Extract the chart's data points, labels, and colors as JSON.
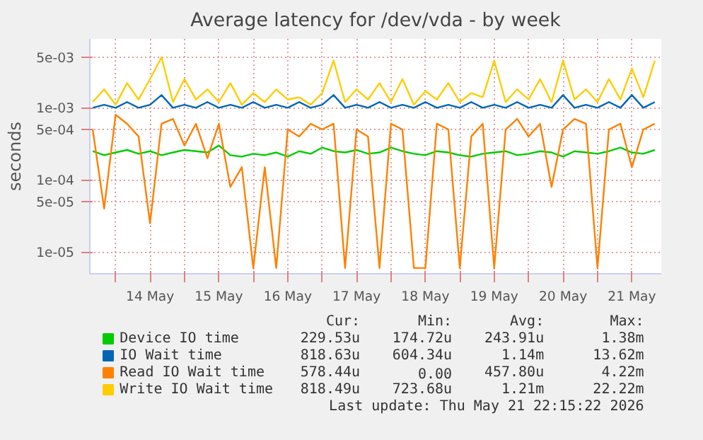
{
  "chart_data": {
    "type": "line",
    "title": "Average latency for /dev/vda - by week",
    "ylabel": "seconds",
    "x": [
      "2026-05-13T16:00",
      "2026-05-13T20:00",
      "2026-05-14T00:00",
      "2026-05-14T04:00",
      "2026-05-14T08:00",
      "2026-05-14T12:00",
      "2026-05-14T16:00",
      "2026-05-14T20:00",
      "2026-05-15T00:00",
      "2026-05-15T04:00",
      "2026-05-15T08:00",
      "2026-05-15T12:00",
      "2026-05-15T16:00",
      "2026-05-15T20:00",
      "2026-05-16T00:00",
      "2026-05-16T04:00",
      "2026-05-16T08:00",
      "2026-05-16T12:00",
      "2026-05-16T16:00",
      "2026-05-16T20:00",
      "2026-05-17T00:00",
      "2026-05-17T04:00",
      "2026-05-17T08:00",
      "2026-05-17T12:00",
      "2026-05-17T16:00",
      "2026-05-17T20:00",
      "2026-05-18T00:00",
      "2026-05-18T04:00",
      "2026-05-18T08:00",
      "2026-05-18T12:00",
      "2026-05-18T16:00",
      "2026-05-18T20:00",
      "2026-05-19T00:00",
      "2026-05-19T04:00",
      "2026-05-19T08:00",
      "2026-05-19T12:00",
      "2026-05-19T16:00",
      "2026-05-19T20:00",
      "2026-05-20T00:00",
      "2026-05-20T04:00",
      "2026-05-20T08:00",
      "2026-05-20T12:00",
      "2026-05-20T16:00",
      "2026-05-20T20:00",
      "2026-05-21T00:00",
      "2026-05-21T04:00",
      "2026-05-21T08:00",
      "2026-05-21T12:00",
      "2026-05-21T16:00",
      "2026-05-21T20:00"
    ],
    "series": [
      {
        "name": "Device IO time",
        "color": "#00cc00",
        "values": [
          0.00025,
          0.00022,
          0.00024,
          0.00026,
          0.00023,
          0.00025,
          0.00022,
          0.00024,
          0.00026,
          0.00025,
          0.00024,
          0.0003,
          0.00022,
          0.00021,
          0.00023,
          0.00022,
          0.00024,
          0.00021,
          0.00025,
          0.00023,
          0.00028,
          0.00025,
          0.00024,
          0.00026,
          0.00023,
          0.00024,
          0.00028,
          0.00025,
          0.00023,
          0.00022,
          0.00025,
          0.00024,
          0.00022,
          0.00021,
          0.00023,
          0.00024,
          0.00025,
          0.00022,
          0.00023,
          0.00025,
          0.00024,
          0.00021,
          0.00025,
          0.00024,
          0.00023,
          0.00025,
          0.00028,
          0.00024,
          0.00023,
          0.00026
        ]
      },
      {
        "name": "IO Wait time",
        "color": "#0066b3",
        "values": [
          0.001,
          0.0011,
          0.001,
          0.0012,
          0.001,
          0.0011,
          0.0015,
          0.001,
          0.0011,
          0.001,
          0.0012,
          0.001,
          0.0011,
          0.001,
          0.0012,
          0.001,
          0.0011,
          0.001,
          0.0012,
          0.001,
          0.0011,
          0.0015,
          0.001,
          0.0011,
          0.001,
          0.0012,
          0.001,
          0.0011,
          0.001,
          0.0012,
          0.001,
          0.0011,
          0.001,
          0.0012,
          0.001,
          0.0011,
          0.001,
          0.0012,
          0.001,
          0.0011,
          0.001,
          0.0015,
          0.001,
          0.0011,
          0.001,
          0.0012,
          0.001,
          0.0015,
          0.001,
          0.0012
        ]
      },
      {
        "name": "Read IO Wait time",
        "color": "#ff8000",
        "values": [
          0.0005,
          4e-05,
          0.0008,
          0.0006,
          0.0004,
          2.5e-05,
          0.0006,
          0.0007,
          0.0003,
          0.0006,
          0.0002,
          0.0006,
          8e-05,
          0.00015,
          6e-06,
          0.00015,
          6e-06,
          0.0005,
          0.0004,
          0.0006,
          0.0005,
          0.0006,
          6e-06,
          0.0005,
          0.0004,
          6e-06,
          0.0006,
          0.0005,
          6e-06,
          6e-06,
          0.0006,
          0.0005,
          6e-06,
          0.0004,
          0.0006,
          6e-06,
          0.0005,
          0.0007,
          0.0004,
          0.0006,
          8e-05,
          0.0005,
          0.0007,
          0.0006,
          6e-06,
          0.0005,
          0.0006,
          0.00015,
          0.0005,
          0.0006
        ]
      },
      {
        "name": "Write IO Wait time",
        "color": "#ffcc00",
        "values": [
          0.0012,
          0.0018,
          0.0011,
          0.0022,
          0.0013,
          0.0025,
          0.005,
          0.0012,
          0.0025,
          0.0013,
          0.0018,
          0.0012,
          0.0022,
          0.0011,
          0.0016,
          0.0012,
          0.0018,
          0.0013,
          0.0014,
          0.0011,
          0.0016,
          0.0045,
          0.0012,
          0.0018,
          0.0013,
          0.0022,
          0.0012,
          0.0025,
          0.0011,
          0.0017,
          0.0013,
          0.0022,
          0.0012,
          0.0016,
          0.0014,
          0.0045,
          0.0012,
          0.0018,
          0.0013,
          0.0025,
          0.0012,
          0.0045,
          0.0013,
          0.0018,
          0.0012,
          0.0025,
          0.0013,
          0.0035,
          0.0014,
          0.0045
        ]
      }
    ],
    "log": "y",
    "xlim": [
      "2026-05-13T15:00",
      "2026-05-21T22:15"
    ],
    "ylim": [
      5e-06,
      0.009
    ],
    "xticks": [
      {
        "value": "2026-05-14T00:00",
        "label": null
      },
      {
        "value": "2026-05-14T12:00",
        "label": "14 May"
      },
      {
        "value": "2026-05-15T00:00",
        "label": null
      },
      {
        "value": "2026-05-15T12:00",
        "label": "15 May"
      },
      {
        "value": "2026-05-16T00:00",
        "label": null
      },
      {
        "value": "2026-05-16T12:00",
        "label": "16 May"
      },
      {
        "value": "2026-05-17T00:00",
        "label": null
      },
      {
        "value": "2026-05-17T12:00",
        "label": "17 May"
      },
      {
        "value": "2026-05-18T00:00",
        "label": null
      },
      {
        "value": "2026-05-18T12:00",
        "label": "18 May"
      },
      {
        "value": "2026-05-19T00:00",
        "label": null
      },
      {
        "value": "2026-05-19T12:00",
        "label": "19 May"
      },
      {
        "value": "2026-05-20T00:00",
        "label": null
      },
      {
        "value": "2026-05-20T12:00",
        "label": "20 May"
      },
      {
        "value": "2026-05-21T00:00",
        "label": null
      },
      {
        "value": "2026-05-21T12:00",
        "label": "21 May"
      }
    ],
    "yticks": [
      {
        "value": 1e-05,
        "label": "1e-05"
      },
      {
        "value": 5e-05,
        "label": "5e-05"
      },
      {
        "value": 0.0001,
        "label": "1e-04"
      },
      {
        "value": 0.0005,
        "label": "5e-04"
      },
      {
        "value": 0.001,
        "label": "1e-03"
      },
      {
        "value": 0.005,
        "label": "5e-03"
      }
    ],
    "grid": true,
    "legend": "bottom",
    "marker": "none",
    "line_style": "solid",
    "annotations": [
      "Cur:",
      "Min:",
      "Avg:",
      "Max:",
      "229.53u",
      "174.72u",
      "243.91u",
      "1.38m",
      "818.63u",
      "604.34u",
      "1.14m",
      "13.62m",
      "578.44u",
      "0.00",
      "457.80u",
      "4.22m",
      "818.49u",
      "723.68u",
      "1.21m",
      "22.22m",
      "Last update: Thu May 21 22:15:22 2026"
    ]
  }
}
